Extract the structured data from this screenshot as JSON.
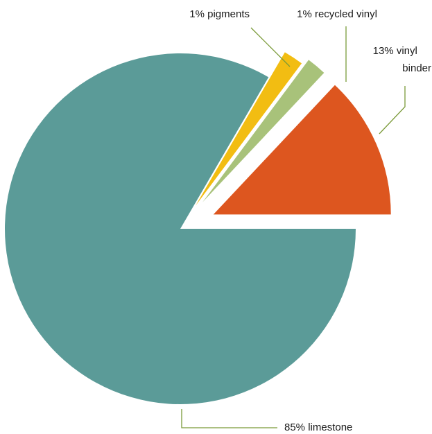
{
  "chart_data": {
    "type": "pie",
    "title": "",
    "exploded": true,
    "slices": [
      {
        "label": "85% limestone",
        "value": 85,
        "color": "#5b9b98"
      },
      {
        "label": "1% pigments",
        "value": 1,
        "color": "#f2bd12"
      },
      {
        "label": "1% recycled vinyl",
        "value": 1,
        "color": "#a8c27a"
      },
      {
        "label": "13% vinyl binder",
        "value": 13,
        "color": "#dd561f"
      }
    ],
    "leader_line_color": "#7a9a38"
  }
}
